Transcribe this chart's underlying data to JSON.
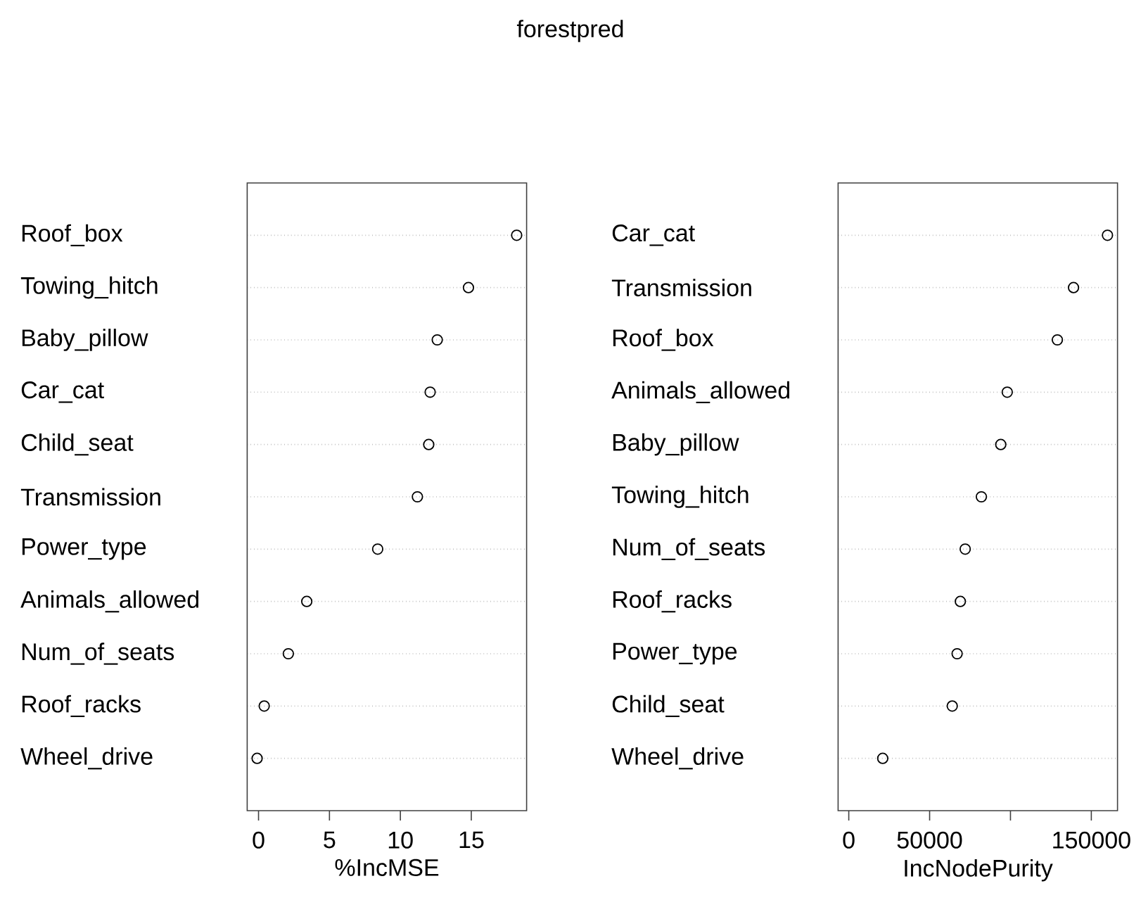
{
  "chart_data": [
    {
      "type": "scatter",
      "title": "forestpred",
      "orientation": "horizontal",
      "marker": "circle",
      "grid": "y",
      "color": "#000000",
      "xlabel": "%IncMSE",
      "categories": [
        "Roof_box",
        "Towing_hitch",
        "Baby_pillow",
        "Car_cat",
        "Child_seat",
        "Transmission",
        "Power_type",
        "Animals_allowed",
        "Num_of_seats",
        "Roof_racks",
        "Wheel_drive"
      ],
      "values": [
        18.2,
        14.8,
        12.6,
        12.1,
        12.0,
        11.2,
        8.4,
        3.4,
        2.1,
        0.4,
        -0.1
      ],
      "xlim": [
        -0.8,
        18.9
      ],
      "xticks": [
        0,
        5,
        10,
        15
      ]
    },
    {
      "type": "scatter",
      "orientation": "horizontal",
      "marker": "circle",
      "grid": "y",
      "color": "#000000",
      "xlabel": "IncNodePurity",
      "categories": [
        "Car_cat",
        "Transmission",
        "Roof_box",
        "Animals_allowed",
        "Baby_pillow",
        "Towing_hitch",
        "Num_of_seats",
        "Roof_racks",
        "Power_type",
        "Child_seat",
        "Wheel_drive"
      ],
      "values": [
        160000,
        139000,
        129000,
        98000,
        94000,
        82000,
        72000,
        69000,
        67000,
        64000,
        21000
      ],
      "xlim": [
        -6600,
        166200
      ],
      "xticks": [
        0,
        50000,
        {
          "value": 100000,
          "label": null
        },
        150000
      ]
    }
  ]
}
